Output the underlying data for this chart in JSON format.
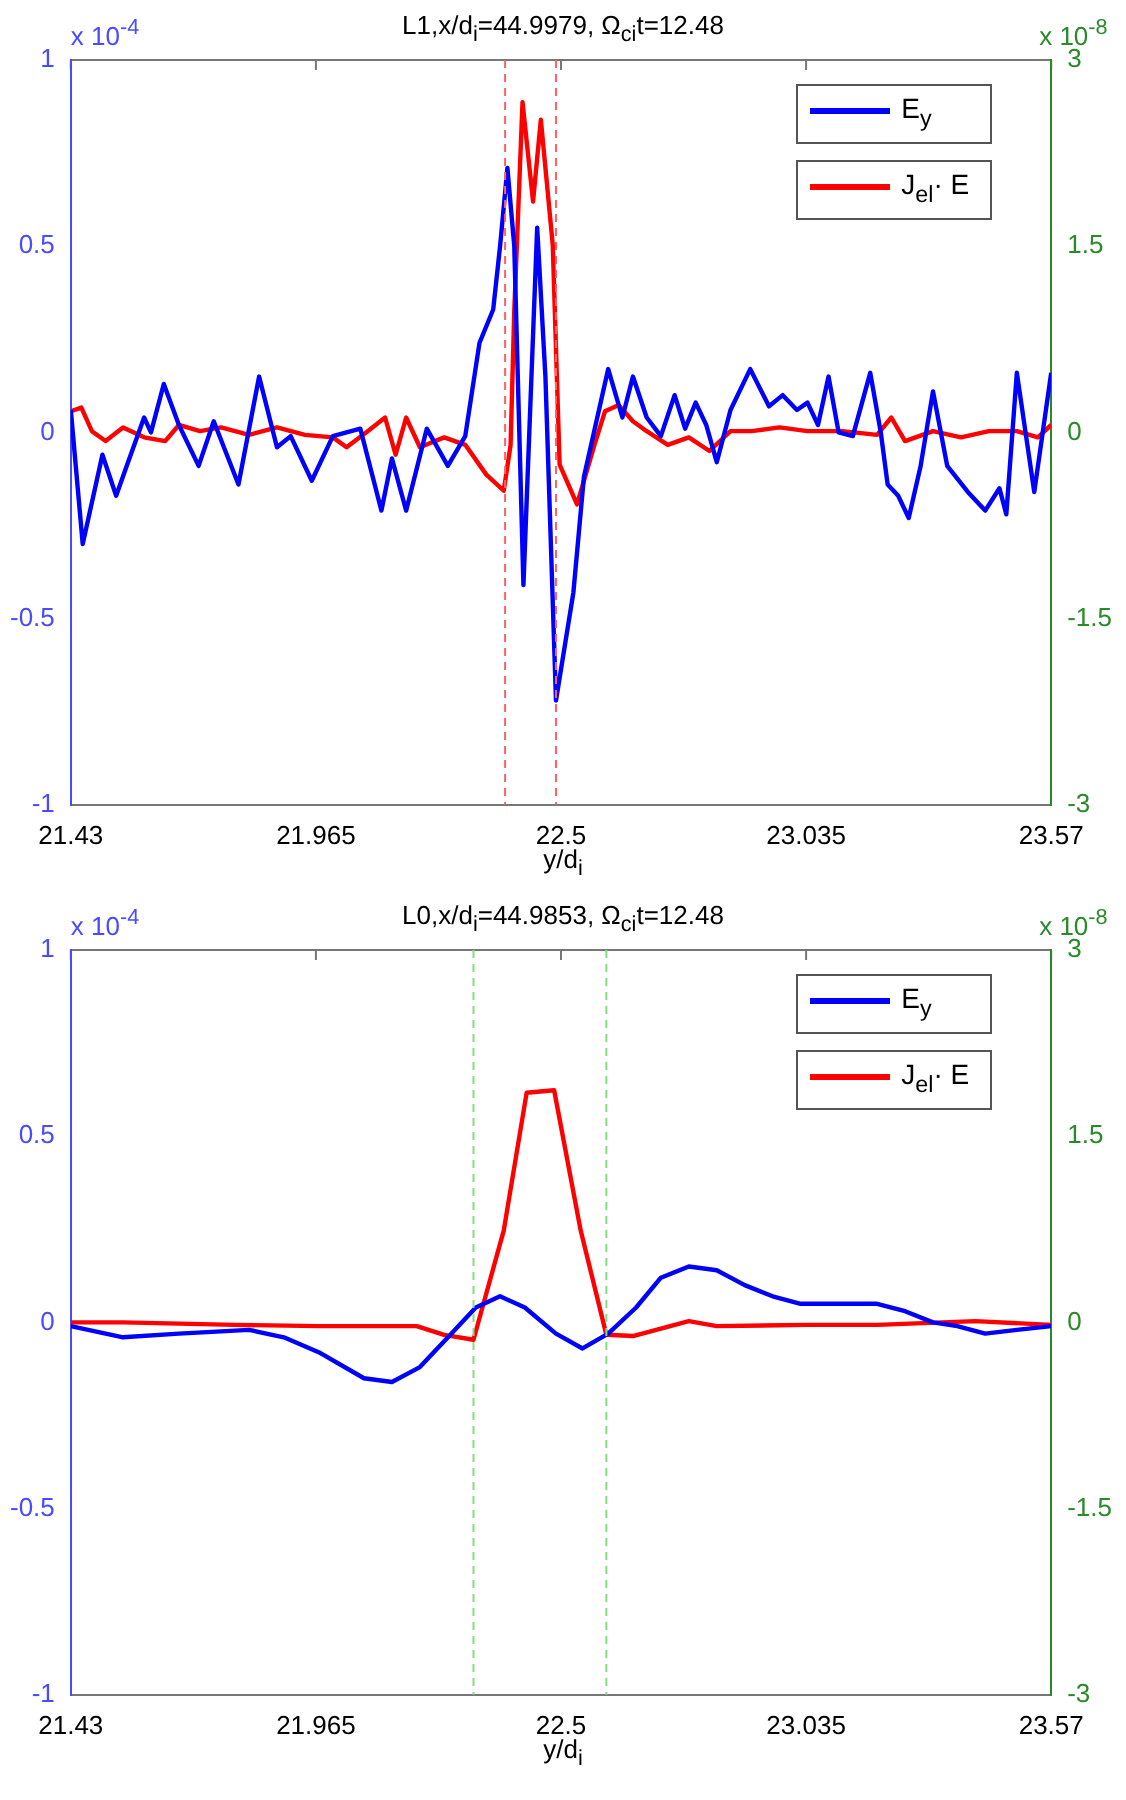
{
  "chart_data": [
    {
      "type": "line",
      "title": "L1,x/d$_{i}$=44.9979, Ω$_{ci}$t=12.48",
      "xlabel": "y/d$_{i}$",
      "legend": "top right",
      "xlim": [
        21.43,
        23.57
      ],
      "xticks": [
        21.43,
        21.965,
        22.5,
        23.035,
        23.57
      ],
      "ylim": [
        -1,
        1
      ],
      "yticks": [
        -1,
        -0.5,
        0,
        0.5,
        1
      ],
      "y2lim": [
        -3,
        3
      ],
      "y2ticks": [
        -3,
        -1.5,
        0,
        1.5,
        3
      ],
      "annotations": [
        "x 10$^{-4}$",
        "x 10$^{-8}$"
      ],
      "ref_lines": [
        {
          "axis": "x",
          "value": 22.378,
          "color": "#ff6060",
          "line_style": "dashed"
        },
        {
          "axis": "x",
          "value": 22.489,
          "color": "#ff6060",
          "line_style": "dashed"
        }
      ],
      "series": [
        {
          "name": "E$_{y}$",
          "color": "#0000ff",
          "x": [
            21.43,
            21.456,
            21.499,
            21.529,
            21.552,
            21.59,
            21.605,
            21.633,
            21.666,
            21.709,
            21.742,
            21.796,
            21.841,
            21.88,
            21.91,
            21.956,
            22.002,
            22.062,
            22.108,
            22.131,
            22.162,
            22.207,
            22.253,
            22.291,
            22.322,
            22.352,
            22.367,
            22.383,
            22.398,
            22.418,
            22.448,
            22.466,
            22.489,
            22.527,
            22.55,
            22.603,
            22.634,
            22.657,
            22.687,
            22.718,
            22.748,
            22.771,
            22.794,
            22.817,
            22.84,
            22.87,
            22.913,
            22.954,
            22.984,
            23.015,
            23.038,
            23.061,
            23.084,
            23.106,
            23.137,
            23.175,
            23.198,
            23.213,
            23.236,
            23.259,
            23.285,
            23.312,
            23.343,
            23.388,
            23.426,
            23.457,
            23.472,
            23.495,
            23.533,
            23.57
          ],
          "values": [
            0.06,
            -0.3,
            -0.06,
            -0.17,
            -0.09,
            0.04,
            0,
            0.13,
            0.02,
            -0.09,
            0.03,
            -0.14,
            0.15,
            -0.04,
            -0.01,
            -0.13,
            -0.01,
            0.01,
            -0.21,
            -0.07,
            -0.21,
            0.01,
            -0.09,
            -0.01,
            0.24,
            0.33,
            0.5,
            0.71,
            0.5,
            -0.41,
            0.55,
            0.15,
            -0.72,
            -0.43,
            -0.12,
            0.17,
            0.04,
            0.15,
            0.04,
            -0.01,
            0.1,
            0.01,
            0.08,
            0.02,
            -0.08,
            0.06,
            0.17,
            0.07,
            0.1,
            0.06,
            0.08,
            0.02,
            0.15,
            0,
            -0.01,
            0.16,
            0,
            -0.14,
            -0.17,
            -0.23,
            -0.09,
            0.11,
            -0.09,
            -0.16,
            -0.21,
            -0.15,
            -0.22,
            0.16,
            -0.16,
            0.16
          ]
        },
        {
          "name": "J$_{el}$· E",
          "color": "#ff0000",
          "axis": "y2",
          "x": [
            21.43,
            21.453,
            21.476,
            21.506,
            21.544,
            21.59,
            21.636,
            21.666,
            21.712,
            21.758,
            21.819,
            21.88,
            21.941,
            22.002,
            22.032,
            22.078,
            22.116,
            22.139,
            22.162,
            22.192,
            22.245,
            22.291,
            22.337,
            22.375,
            22.39,
            22.398,
            22.416,
            22.439,
            22.456,
            22.482,
            22.497,
            22.535,
            22.573,
            22.596,
            22.626,
            22.657,
            22.687,
            22.733,
            22.779,
            22.824,
            22.87,
            22.916,
            22.977,
            23.038,
            23.114,
            23.19,
            23.221,
            23.251,
            23.312,
            23.373,
            23.434,
            23.495,
            23.541,
            23.57
          ],
          "values": [
            0.17,
            0.2,
            0.01,
            -0.07,
            0.04,
            -0.04,
            -0.07,
            0.06,
            0.01,
            0.04,
            -0.02,
            0.04,
            -0.02,
            -0.04,
            -0.12,
            0.01,
            0.12,
            -0.18,
            0.12,
            -0.12,
            -0.04,
            -0.1,
            -0.34,
            -0.47,
            -0.1,
            0.98,
            2.66,
            1.86,
            2.52,
            1.51,
            -0.26,
            -0.58,
            -0.1,
            0.17,
            0.22,
            0.09,
            0.01,
            -0.1,
            -0.04,
            -0.15,
            0.01,
            0.01,
            0.04,
            0.01,
            0.01,
            -0.02,
            0.12,
            -0.07,
            0.01,
            -0.04,
            0.01,
            0.01,
            -0.04,
            0.06
          ]
        }
      ]
    },
    {
      "type": "line",
      "title": "L0,x/d$_{i}$=44.9853, Ω$_{ci}$t=12.48",
      "xlabel": "y/d$_{i}$",
      "legend": "top right",
      "xlim": [
        21.43,
        23.57
      ],
      "xticks": [
        21.43,
        21.965,
        22.5,
        23.035,
        23.57
      ],
      "ylim": [
        -1,
        1
      ],
      "yticks": [
        -1,
        -0.5,
        0,
        0.5,
        1
      ],
      "y2lim": [
        -3,
        3
      ],
      "y2ticks": [
        -3,
        -1.5,
        0,
        1.5,
        3
      ],
      "annotations": [
        "x 10$^{-4}$",
        "x 10$^{-8}$"
      ],
      "ref_lines": [
        {
          "axis": "x",
          "value": 22.309,
          "color": "#80e080",
          "line_style": "dashed"
        },
        {
          "axis": "x",
          "value": 22.599,
          "color": "#80e080",
          "line_style": "dashed"
        }
      ],
      "series": [
        {
          "name": "E$_{y}$",
          "color": "#0000ff",
          "x": [
            21.43,
            21.544,
            21.666,
            21.819,
            21.895,
            21.971,
            22.07,
            22.131,
            22.192,
            22.261,
            22.314,
            22.367,
            22.421,
            22.489,
            22.547,
            22.603,
            22.664,
            22.718,
            22.779,
            22.84,
            22.901,
            22.962,
            23.023,
            23.129,
            23.19,
            23.251,
            23.312,
            23.365,
            23.426,
            23.495,
            23.57
          ],
          "values": [
            -0.01,
            -0.04,
            -0.03,
            -0.02,
            -0.04,
            -0.08,
            -0.15,
            -0.16,
            -0.12,
            -0.03,
            0.04,
            0.07,
            0.04,
            -0.03,
            -0.07,
            -0.03,
            0.04,
            0.12,
            0.15,
            0.14,
            0.1,
            0.07,
            0.05,
            0.05,
            0.05,
            0.03,
            0,
            -0.01,
            -0.03,
            -0.02,
            -0.01
          ]
        },
        {
          "name": "J$_{el}$· E",
          "color": "#ff0000",
          "axis": "y2",
          "x": [
            21.43,
            21.544,
            21.666,
            21.788,
            21.971,
            22.124,
            22.185,
            22.245,
            22.309,
            22.375,
            22.425,
            22.485,
            22.543,
            22.599,
            22.657,
            22.779,
            22.84,
            23.038,
            23.19,
            23.404,
            23.57
          ],
          "values": [
            0,
            0,
            -0.01,
            -0.02,
            -0.03,
            -0.03,
            -0.03,
            -0.1,
            -0.14,
            0.74,
            1.85,
            1.87,
            0.74,
            -0.1,
            -0.11,
            0.01,
            -0.03,
            -0.02,
            -0.02,
            0.01,
            -0.02
          ]
        }
      ]
    }
  ]
}
